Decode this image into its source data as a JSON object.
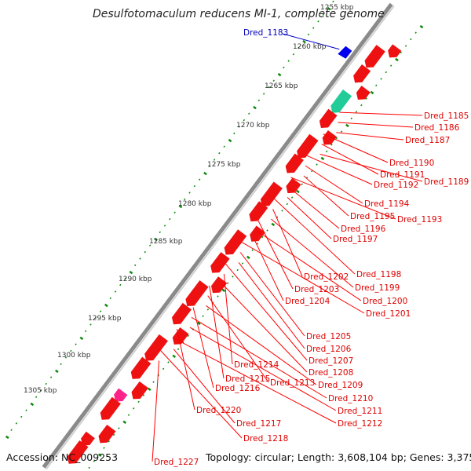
{
  "title": "Desulfotomaculum reducens MI-1, complete genome",
  "accession": "Accession: NC_009253",
  "summary": "Topology: circular; Length: 3,608,104 bp; Genes: 3,375",
  "colors": {
    "gene": "#ff0000",
    "label_line": "#ff0000",
    "backbone": "#999999",
    "tick": "#00aa00",
    "highlight": "#0000cc"
  },
  "scale_labels": [
    {
      "text": "1255 kbp"
    },
    {
      "text": "1260 kbp"
    },
    {
      "text": "1265 kbp"
    },
    {
      "text": "1270 kbp"
    },
    {
      "text": "1275 kbp"
    },
    {
      "text": "1280 kbp"
    },
    {
      "text": "1285 kbp"
    },
    {
      "text": "1290 kbp"
    },
    {
      "text": "1295 kbp"
    },
    {
      "text": "1300 kbp"
    },
    {
      "text": "1305 kbp"
    }
  ],
  "highlight_gene": "Dred_1183",
  "gene_labels": [
    "Dred_1185",
    "Dred_1186",
    "Dred_1187",
    "Dred_1190",
    "Dred_1191",
    "Dred_1189",
    "Dred_1192",
    "Dred_1194",
    "Dred_1195",
    "Dred_1193",
    "Dred_1196",
    "Dred_1197",
    "Dred_1198",
    "Dred_1202",
    "Dred_1199",
    "Dred_1203",
    "Dred_1200",
    "Dred_1204",
    "Dred_1201",
    "Dred_1205",
    "Dred_1206",
    "Dred_1207",
    "Dred_1214",
    "Dred_1208",
    "Dred_1215",
    "Dred_1213",
    "Dred_1209",
    "Dred_1216",
    "Dred_1210",
    "Dred_1211",
    "Dred_1220",
    "Dred_1212",
    "Dred_1217",
    "Dred_1218",
    "Dred_1227"
  ]
}
